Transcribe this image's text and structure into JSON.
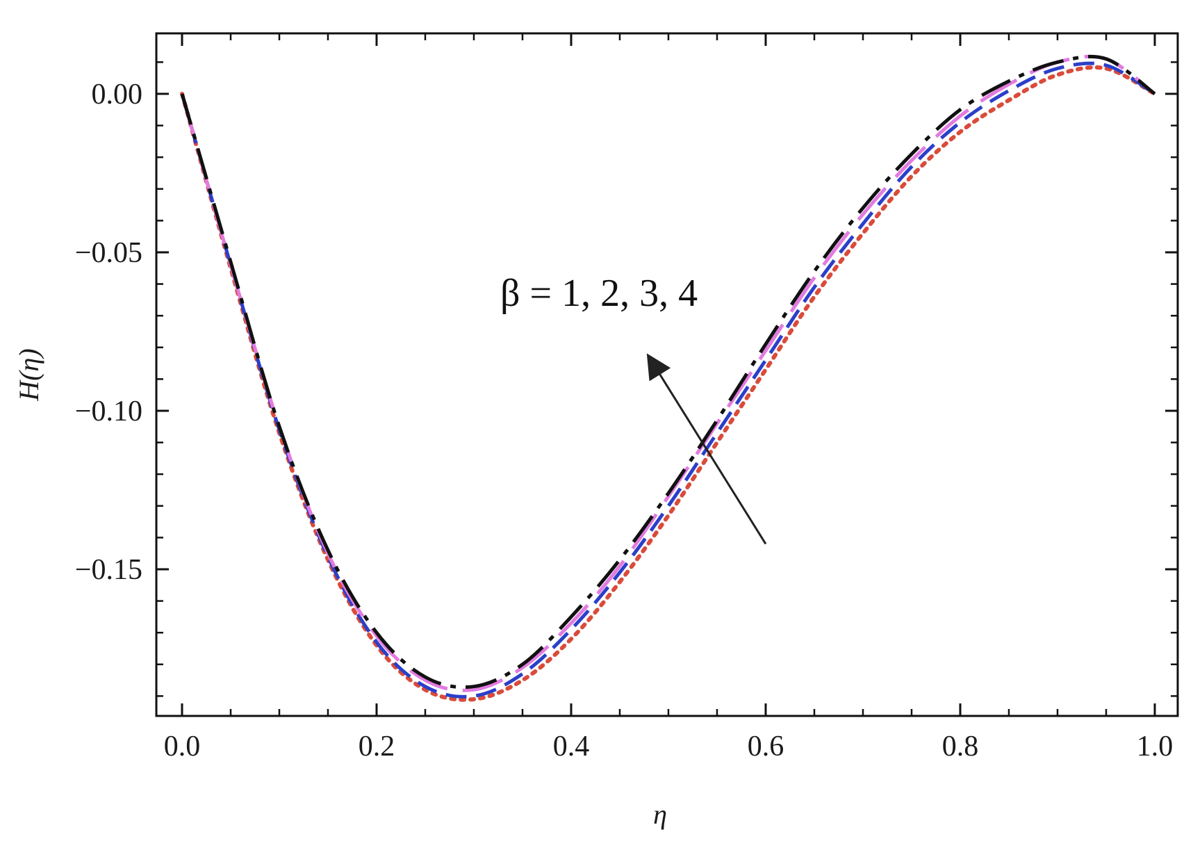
{
  "chart_data": {
    "type": "line",
    "title": "",
    "xlabel": "η",
    "ylabel": "H(η)",
    "xlim": [
      0,
      1
    ],
    "ylim": [
      -0.197,
      0.02
    ],
    "x_ticks": [
      {
        "value": 0.0,
        "label": "0.0"
      },
      {
        "value": 0.2,
        "label": "0.2"
      },
      {
        "value": 0.4,
        "label": "0.4"
      },
      {
        "value": 0.6,
        "label": "0.6"
      },
      {
        "value": 0.8,
        "label": "0.8"
      },
      {
        "value": 1.0,
        "label": "1.0"
      }
    ],
    "y_ticks": [
      {
        "value": 0.0,
        "label": "0.00"
      },
      {
        "value": -0.05,
        "label": "−0.05"
      },
      {
        "value": -0.1,
        "label": "−0.10"
      },
      {
        "value": -0.15,
        "label": "−0.15"
      }
    ],
    "annotation": {
      "text": "β = 1, 2, 3, 4",
      "arrow_from": [
        0.6,
        -0.142
      ],
      "arrow_to": [
        0.48,
        -0.083
      ]
    },
    "grid": false,
    "x": [
      0,
      0.05,
      0.1,
      0.15,
      0.2,
      0.25,
      0.3,
      0.35,
      0.4,
      0.45,
      0.5,
      0.55,
      0.6,
      0.65,
      0.7,
      0.75,
      0.8,
      0.85,
      0.9,
      0.95,
      1.0
    ],
    "series": [
      {
        "color": "#d94b3a",
        "dash": "dotted",
        "values": [
          0,
          -0.055,
          -0.107,
          -0.147,
          -0.174,
          -0.188,
          -0.191,
          -0.185,
          -0.172,
          -0.154,
          -0.133,
          -0.11,
          -0.087,
          -0.064,
          -0.044,
          -0.026,
          -0.012,
          -0.002,
          0.006,
          0.008,
          0
        ]
      },
      {
        "color": "#2b3fc9",
        "dash": "dashed",
        "values": [
          0,
          -0.054,
          -0.106,
          -0.146,
          -0.173,
          -0.187,
          -0.19,
          -0.183,
          -0.169,
          -0.151,
          -0.13,
          -0.107,
          -0.084,
          -0.061,
          -0.041,
          -0.023,
          -0.009,
          0.001,
          0.008,
          0.009,
          0
        ]
      },
      {
        "color": "#e27be0",
        "dash": "longdash",
        "values": [
          0,
          -0.054,
          -0.105,
          -0.145,
          -0.171,
          -0.185,
          -0.188,
          -0.181,
          -0.167,
          -0.149,
          -0.127,
          -0.104,
          -0.081,
          -0.058,
          -0.038,
          -0.021,
          -0.007,
          0.003,
          0.01,
          0.011,
          0
        ]
      },
      {
        "color": "#111111",
        "dash": "dashdot",
        "values": [
          0,
          -0.053,
          -0.105,
          -0.144,
          -0.17,
          -0.184,
          -0.187,
          -0.18,
          -0.165,
          -0.147,
          -0.126,
          -0.103,
          -0.079,
          -0.056,
          -0.036,
          -0.019,
          -0.005,
          0.004,
          0.01,
          0.011,
          0
        ]
      }
    ]
  }
}
